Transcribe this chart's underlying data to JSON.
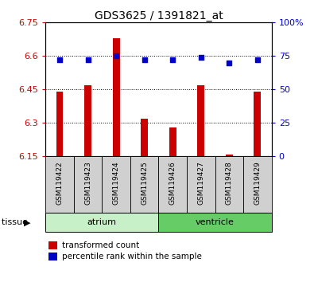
{
  "title": "GDS3625 / 1391821_at",
  "samples": [
    "GSM119422",
    "GSM119423",
    "GSM119424",
    "GSM119425",
    "GSM119426",
    "GSM119427",
    "GSM119428",
    "GSM119429"
  ],
  "bar_values": [
    6.44,
    6.47,
    6.68,
    6.32,
    6.28,
    6.47,
    6.16,
    6.44
  ],
  "percentile_values": [
    72,
    72,
    75,
    72,
    72,
    74,
    70,
    72
  ],
  "ylim_left": [
    6.15,
    6.75
  ],
  "ylim_right": [
    0,
    100
  ],
  "yticks_left": [
    6.15,
    6.3,
    6.45,
    6.6,
    6.75
  ],
  "yticks_right": [
    0,
    25,
    50,
    75,
    100
  ],
  "ytick_labels_right": [
    "0",
    "25",
    "50",
    "75",
    "100%"
  ],
  "bar_color": "#cc0000",
  "dot_color": "#0000cc",
  "tissue_groups": [
    {
      "label": "atrium",
      "start": 0,
      "end": 3,
      "color": "#c8f0c8"
    },
    {
      "label": "ventricle",
      "start": 4,
      "end": 7,
      "color": "#66cc66"
    }
  ],
  "legend_items": [
    {
      "color": "#cc0000",
      "label": "transformed count"
    },
    {
      "color": "#0000cc",
      "label": "percentile rank within the sample"
    }
  ],
  "bar_width": 0.25,
  "left_tick_color": "#cc0000",
  "right_tick_color": "#0000cc",
  "sample_box_color": "#d0d0d0",
  "atrium_color": "#c8f0c8",
  "ventricle_color": "#66cc66"
}
